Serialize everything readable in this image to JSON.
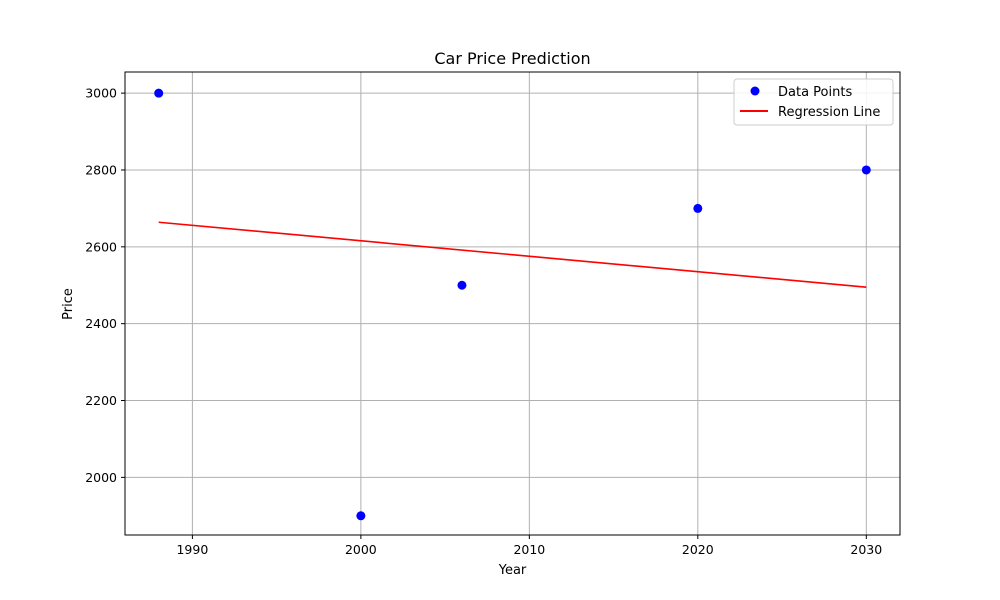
{
  "chart_data": {
    "type": "scatter",
    "title": "Car Price Prediction",
    "xlabel": "Year",
    "ylabel": "Price",
    "xlim": [
      1986,
      2032
    ],
    "ylim": [
      1850,
      3055
    ],
    "xticks": [
      1990,
      2000,
      2010,
      2020,
      2030
    ],
    "yticks": [
      2000,
      2200,
      2400,
      2600,
      2800,
      3000
    ],
    "grid": true,
    "legend_position": "top-right",
    "series": [
      {
        "name": "Data Points",
        "kind": "scatter",
        "color": "#0000ff",
        "points": [
          {
            "x": 1988,
            "y": 3000
          },
          {
            "x": 2000,
            "y": 1900
          },
          {
            "x": 2006,
            "y": 2500
          },
          {
            "x": 2020,
            "y": 2700
          },
          {
            "x": 2030,
            "y": 2800
          }
        ]
      },
      {
        "name": "Regression Line",
        "kind": "line",
        "color": "#ff0000",
        "points": [
          {
            "x": 1988,
            "y": 2664
          },
          {
            "x": 2030,
            "y": 2495
          }
        ]
      }
    ]
  }
}
